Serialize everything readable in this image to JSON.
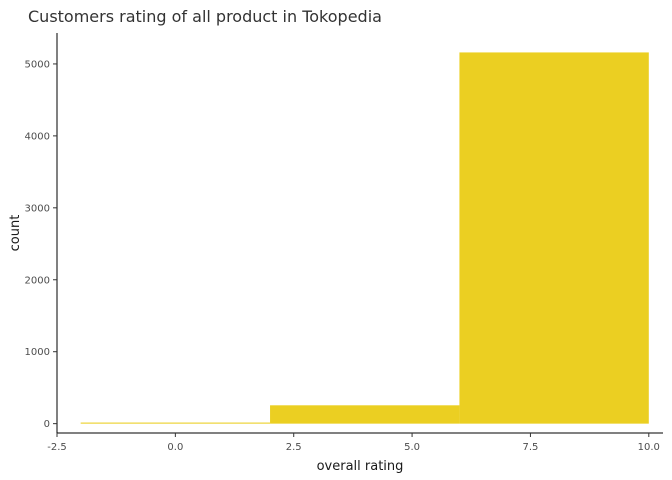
{
  "chart_data": {
    "type": "bar",
    "title": "Customers rating of all product in Tokopedia",
    "xlabel": "overall rating",
    "ylabel": "count",
    "bins": [
      {
        "x0": -2,
        "x1": 2,
        "count": 15
      },
      {
        "x0": 2,
        "x1": 6,
        "count": 255
      },
      {
        "x0": 6,
        "x1": 10,
        "count": 5160
      }
    ],
    "xlim": [
      -2.5,
      10.3
    ],
    "ylim": [
      -130,
      5430
    ],
    "x_ticks": [
      -2.5,
      0.0,
      2.5,
      5.0,
      7.5,
      10.0
    ],
    "x_tick_labels": [
      "-2.5",
      "0.0",
      "2.5",
      "5.0",
      "7.5",
      "10.0"
    ],
    "y_ticks": [
      0,
      1000,
      2000,
      3000,
      4000,
      5000
    ],
    "y_tick_labels": [
      "0",
      "1000",
      "2000",
      "3000",
      "4000",
      "5000"
    ],
    "bar_color": "#EBCF22",
    "grid": false,
    "legend": "none"
  }
}
